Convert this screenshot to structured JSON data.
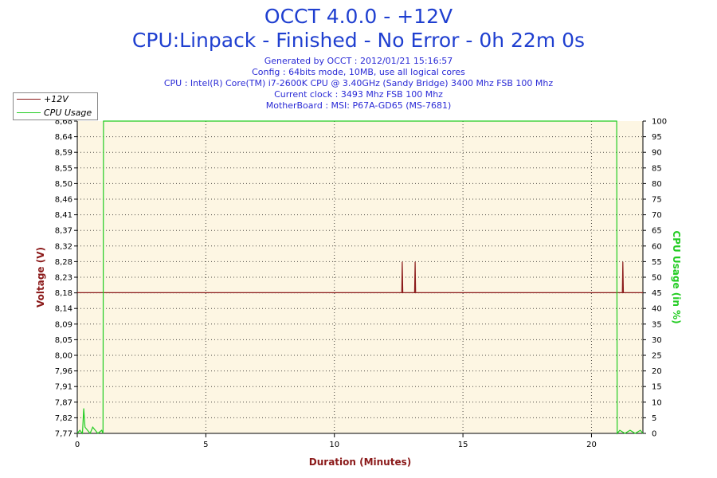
{
  "header": {
    "title": "OCCT 4.0.0 - +12V",
    "subtitle": "CPU:Linpack - Finished - No Error - 0h 22m 0s",
    "info_lines": [
      "Generated by OCCT : 2012/01/21 15:16:57",
      "Config : 64bits mode, 10MB, use all logical cores",
      "CPU : Intel(R) Core(TM) i7-2600K CPU @ 3.40GHz (Sandy Bridge) 3400 Mhz FSB 100 Mhz",
      "Current clock : 3493 Mhz FSB 100 Mhz",
      "MotherBoard : MSI: P67A-GD65 (MS-7681)"
    ]
  },
  "legend": {
    "items": [
      {
        "label": "+12V",
        "color": "#8b1a1a"
      },
      {
        "label": "CPU Usage",
        "color": "#22cc22"
      }
    ]
  },
  "colors": {
    "plot_background": "#fdf6e3",
    "grid": "#000000",
    "voltage": "#8b1a1a",
    "cpu": "#22cc22",
    "axis_label_left": "#8b1a1a",
    "axis_label_right": "#22cc22",
    "axis_label_bottom": "#8b1a1a"
  },
  "chart_data": {
    "type": "line",
    "grid": "dotted",
    "legend_position": "top-left",
    "xlabel": "Duration (Minutes)",
    "ylabel": "Voltage (V)",
    "y2label": "CPU Usage (in %)",
    "xlim": [
      0,
      22
    ],
    "ylim": [
      7.77,
      8.68
    ],
    "y2lim": [
      0,
      100
    ],
    "x_ticks": [
      0,
      5,
      10,
      15,
      20
    ],
    "y_ticks": [
      "7,77",
      "7,82",
      "7,87",
      "7,91",
      "7,96",
      "8,00",
      "8,05",
      "8,09",
      "8,14",
      "8,18",
      "8,23",
      "8,28",
      "8,32",
      "8,37",
      "8,41",
      "8,46",
      "8,50",
      "8,55",
      "8,59",
      "8,64",
      "8,68"
    ],
    "y2_ticks": [
      0,
      5,
      10,
      15,
      20,
      25,
      30,
      35,
      40,
      45,
      50,
      55,
      60,
      65,
      70,
      75,
      80,
      85,
      90,
      95,
      100
    ],
    "series": [
      {
        "name": "+12V",
        "axis": "left",
        "x": [
          0,
          12.62,
          12.64,
          12.66,
          13.12,
          13.14,
          13.16,
          21.2,
          21.22,
          21.24,
          22
        ],
        "y": [
          8.18,
          8.18,
          8.27,
          8.18,
          8.18,
          8.27,
          8.18,
          8.18,
          8.27,
          8.18,
          8.18
        ]
      },
      {
        "name": "CPU Usage",
        "axis": "right",
        "x": [
          0,
          0.1,
          0.2,
          0.25,
          0.3,
          0.4,
          0.5,
          0.6,
          0.7,
          0.8,
          0.95,
          1.0,
          1.02,
          20.98,
          21.0,
          21.1,
          21.3,
          21.5,
          21.7,
          21.9,
          22
        ],
        "y": [
          0,
          1,
          0,
          8,
          2,
          1,
          0,
          2,
          1,
          0,
          1,
          0,
          100,
          100,
          0,
          1,
          0,
          1,
          0,
          1,
          0
        ]
      }
    ]
  }
}
